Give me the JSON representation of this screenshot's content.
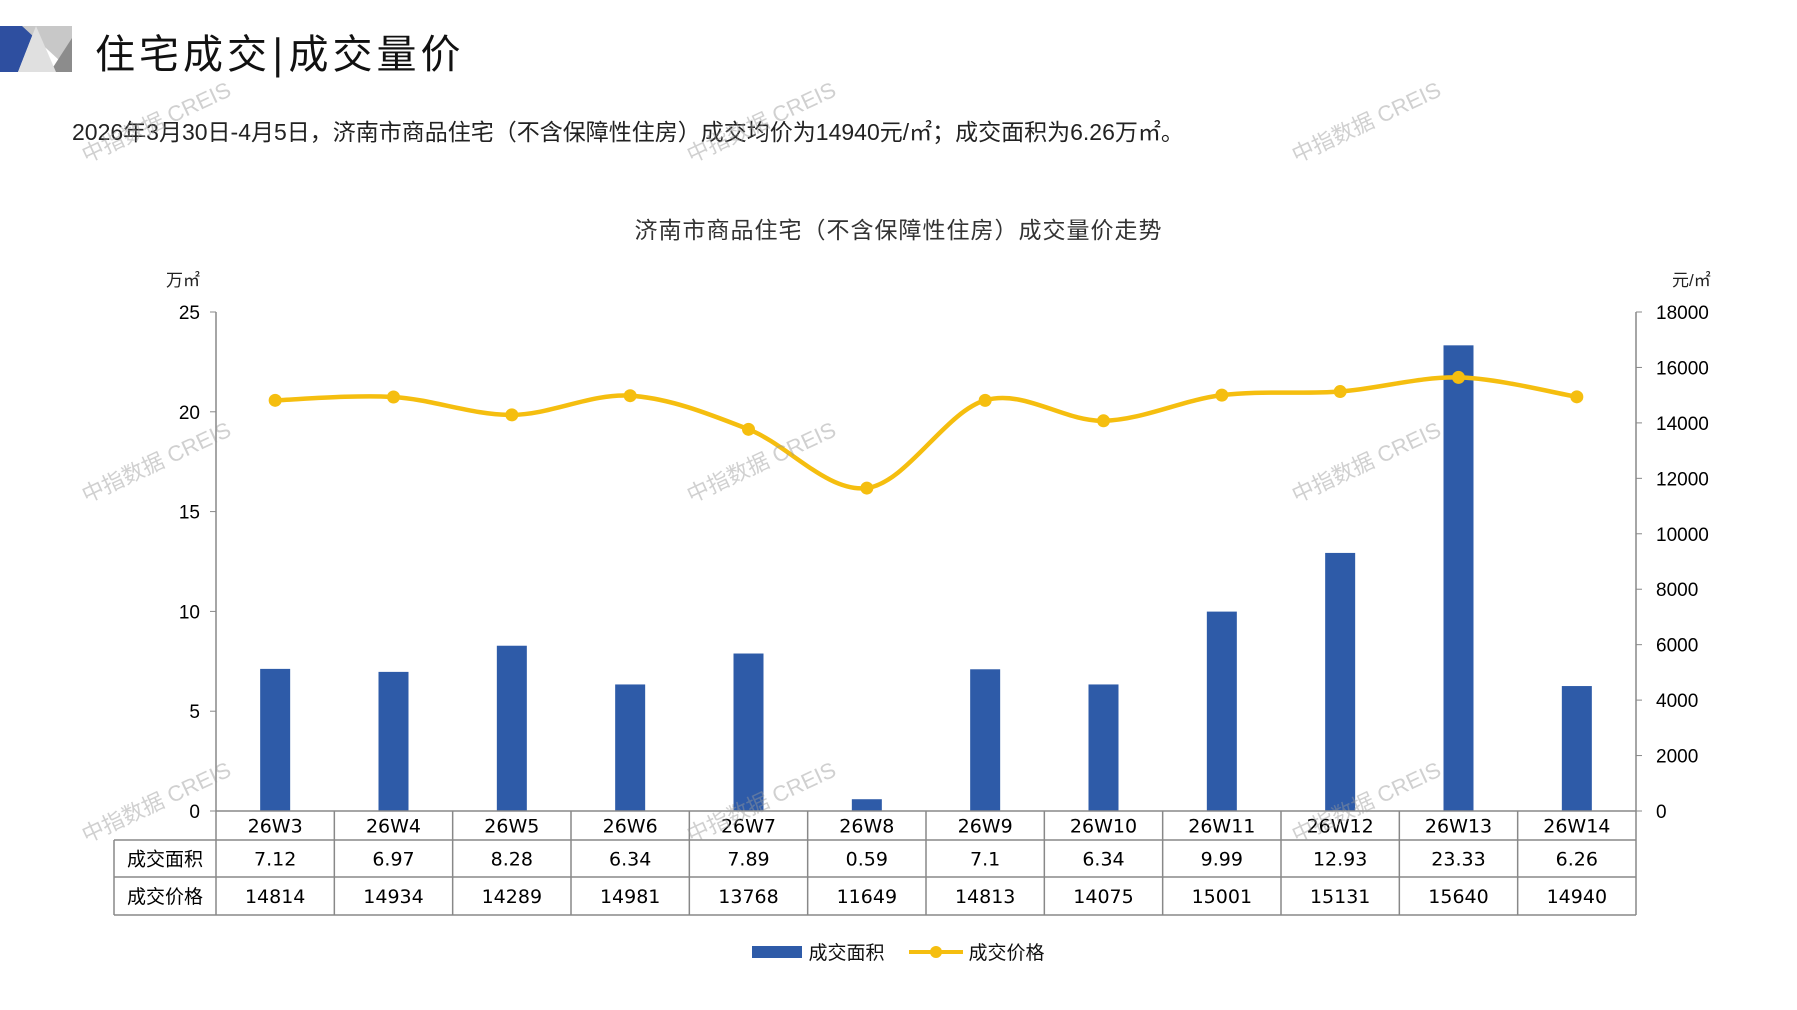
{
  "header": {
    "title": "住宅成交|成交量价",
    "summary": "2026年3月30日-4月5日，济南市商品住宅（不含保障性住房）成交均价为14940元/㎡；成交面积为6.26万㎡。"
  },
  "watermark": "中指数据 CREIS",
  "colors": {
    "bar": "#2E5BA8",
    "line": "#F5BE0F",
    "brand_blue": "#2E4FA0",
    "brand_grey": "#A6A6A6"
  },
  "chart_data": {
    "type": "bar+line",
    "title": "济南市商品住宅（不含保障性住房）成交量价走势",
    "categories": [
      "26W3",
      "26W4",
      "26W5",
      "26W6",
      "26W7",
      "26W8",
      "26W9",
      "26W10",
      "26W11",
      "26W12",
      "26W13",
      "26W14"
    ],
    "series": [
      {
        "name": "成交面积",
        "type": "bar",
        "axis": "left",
        "values": [
          7.12,
          6.97,
          8.28,
          6.34,
          7.89,
          0.59,
          7.1,
          6.34,
          9.99,
          12.93,
          23.33,
          6.26
        ],
        "labels": [
          "7.12",
          "6.97",
          "8.28",
          "6.34",
          "7.89",
          "0.59",
          "7.1",
          "6.34",
          "9.99",
          "12.93",
          "23.33",
          "6.26"
        ]
      },
      {
        "name": "成交价格",
        "type": "line",
        "axis": "right",
        "values": [
          14814,
          14934,
          14289,
          14981,
          13768,
          11649,
          14813,
          14075,
          15001,
          15131,
          15640,
          14940
        ]
      }
    ],
    "y_left": {
      "label": "万㎡",
      "range": [
        0,
        25
      ],
      "ticks": [
        "0",
        "5",
        "10",
        "15",
        "20",
        "25"
      ]
    },
    "y_right": {
      "label": "元/㎡",
      "range": [
        0,
        18000
      ],
      "ticks": [
        "0",
        "2000",
        "4000",
        "6000",
        "8000",
        "10000",
        "12000",
        "14000",
        "16000",
        "18000"
      ]
    },
    "grid": false,
    "legend": "bottom",
    "data_table": true
  }
}
